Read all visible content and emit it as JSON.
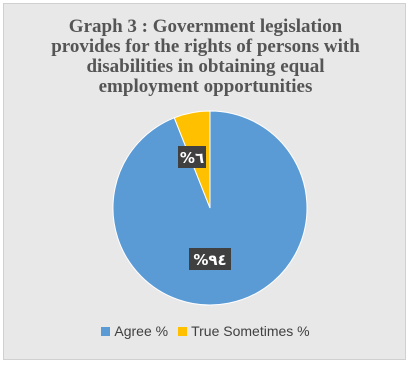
{
  "chart_data": {
    "type": "pie",
    "title_lines": [
      "Graph 3 : Government legislation",
      "provides for the rights  of persons with",
      "disabilities in obtaining  equal",
      "employment opportunities"
    ],
    "slices": [
      {
        "name": "Agree %",
        "value": 94,
        "label": "%٩٤",
        "color": "#5b9bd5"
      },
      {
        "name": "True Sometimes %",
        "value": 6,
        "label": "%٦",
        "color": "#ffc000"
      }
    ],
    "legend_position": "bottom"
  }
}
